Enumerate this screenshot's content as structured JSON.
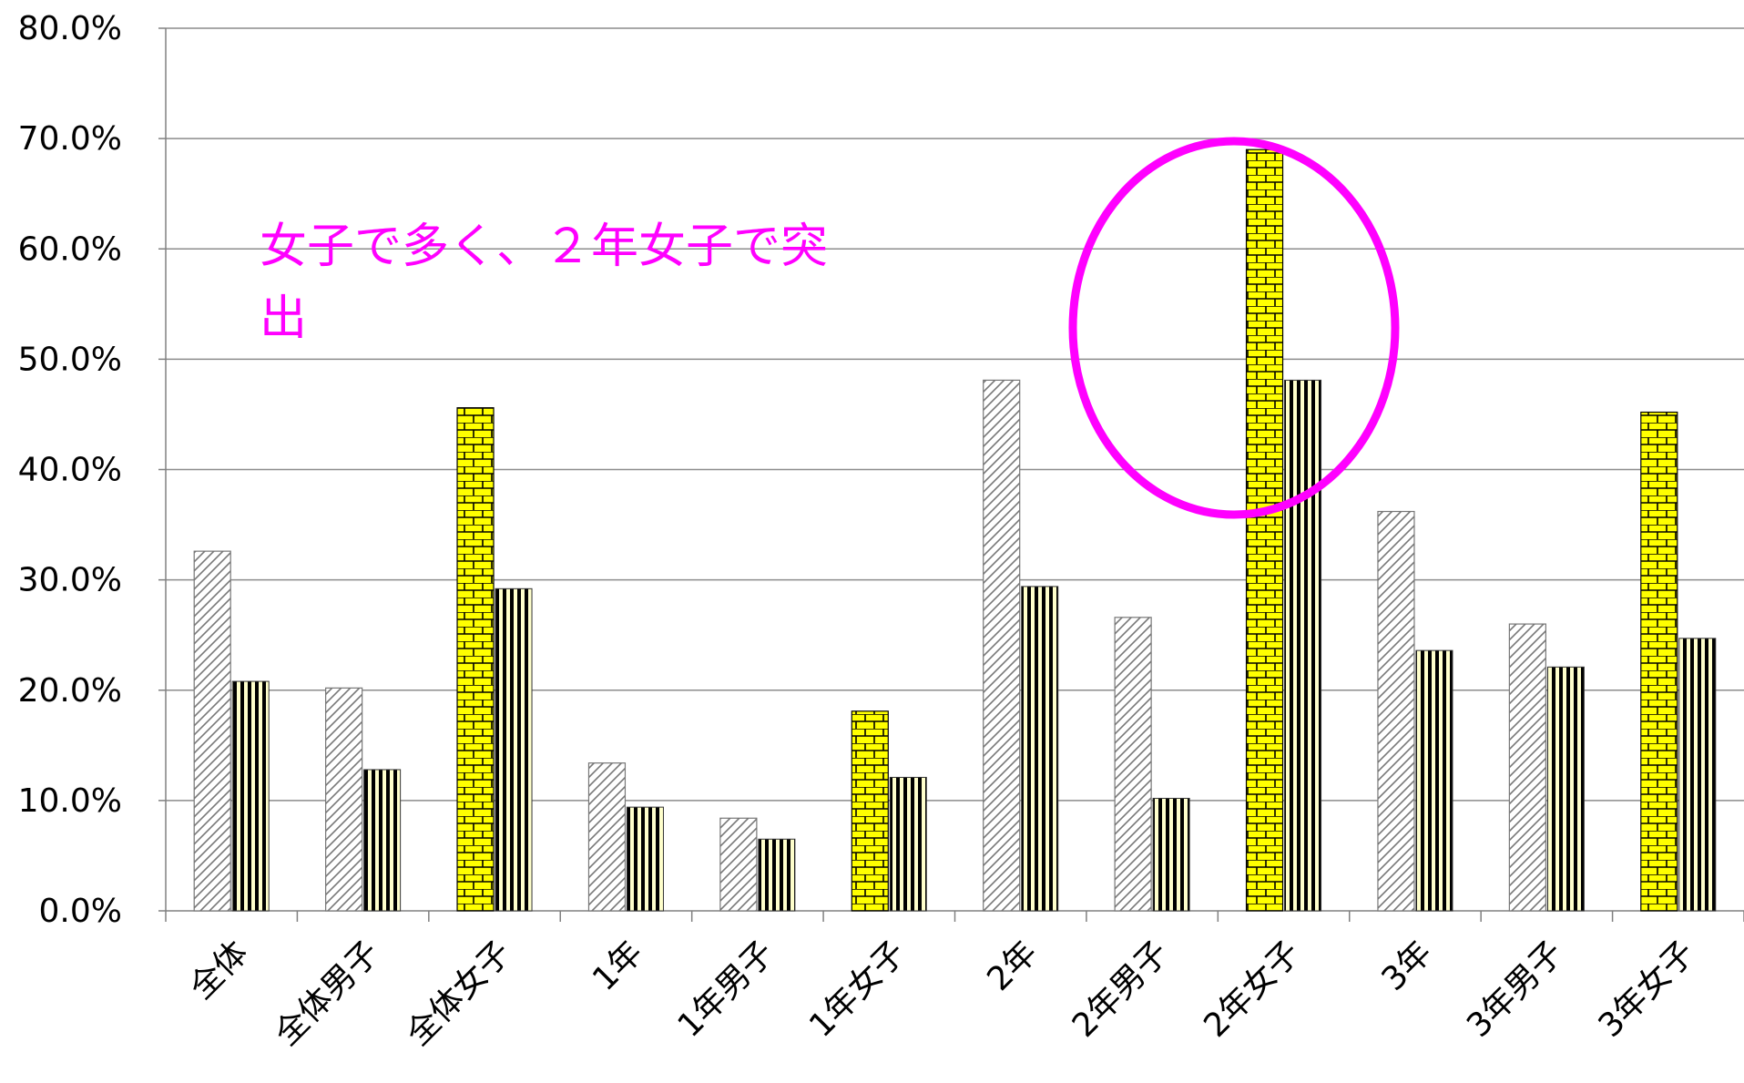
{
  "chart_data": {
    "type": "bar",
    "categories": [
      "全体",
      "全体男子",
      "全体女子",
      "1年",
      "1年男子",
      "1年女子",
      "2年",
      "2年男子",
      "2年女子",
      "3年",
      "3年男子",
      "3年女子"
    ],
    "series": [
      {
        "values": [
          32.6,
          20.2,
          45.6,
          13.4,
          8.4,
          18.1,
          48.1,
          26.6,
          69.0,
          36.2,
          26.0,
          45.2
        ]
      },
      {
        "values": [
          20.8,
          12.8,
          29.2,
          9.4,
          6.5,
          12.1,
          29.4,
          10.2,
          48.1,
          23.6,
          22.1,
          24.7
        ]
      }
    ],
    "ylim": [
      0,
      80
    ],
    "yticks": [
      "0.0%",
      "10.0%",
      "20.0%",
      "30.0%",
      "40.0%",
      "50.0%",
      "60.0%",
      "70.0%",
      "80.0%"
    ],
    "grid": true,
    "annotations": {
      "line1": "女子で多く、２年女子で突",
      "line2": "出"
    },
    "colors": {
      "female_bar": "#ffff00",
      "striped_bar": "#ffffcc",
      "hatch_bar": "#ffffff",
      "highlight": "#ff00ff",
      "grid": "#8c8c8c"
    }
  }
}
